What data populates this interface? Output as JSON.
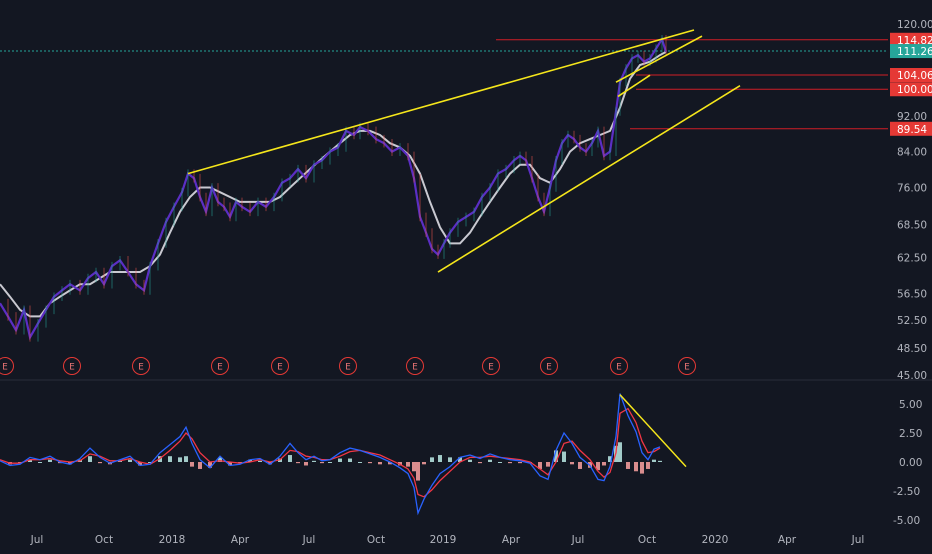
{
  "colors": {
    "background": "#131722",
    "trendline": "#f5e61b",
    "hline": "#d01f26",
    "price_tag_red": "#e53935",
    "price_tag_teal": "#26a69a",
    "ma": "#c9c9d1",
    "price": "#5b2ec4",
    "macd": "#2962ff",
    "signal": "#f23645",
    "hist_pos": "#b2dfdb",
    "hist_neg": "#ef9a9a",
    "text": "#b2b5be"
  },
  "chart_data": [
    {
      "type": "line",
      "name": "price-panel",
      "xlabel": "",
      "ylabel": "",
      "x_ticks": [
        "Jul",
        "Oct",
        "2018",
        "Apr",
        "Jul",
        "Oct",
        "2019",
        "Apr",
        "Jul",
        "Oct",
        "2020",
        "Apr",
        "Jul"
      ],
      "y_ticks": [
        "120.00",
        "104.06",
        "100.00",
        "92.00",
        "84.00",
        "76.00",
        "68.50",
        "62.50",
        "56.50",
        "52.50",
        "48.50",
        "45.00"
      ],
      "ylim": [
        45,
        120
      ],
      "scale": "log",
      "grid": false,
      "price_tags": [
        {
          "label": "114.82",
          "value": 114.82,
          "color": "red"
        },
        {
          "label": "111.26",
          "value": 111.26,
          "color": "teal"
        },
        {
          "label": "104.06",
          "value": 104.06,
          "color": "red"
        },
        {
          "label": "100.00",
          "value": 100.0,
          "color": "red"
        },
        {
          "label": "89.54",
          "value": 89.54,
          "color": "red"
        }
      ],
      "horizontal_lines": [
        114.82,
        104.06,
        100.0,
        89.54
      ],
      "earnings_markers": [
        "E",
        "E",
        "E",
        "E",
        "E",
        "E",
        "E",
        "E",
        "E",
        "E",
        "E"
      ],
      "price_series": [
        [
          0,
          55
        ],
        [
          8,
          53
        ],
        [
          16,
          51
        ],
        [
          24,
          54
        ],
        [
          30,
          50
        ],
        [
          38,
          52
        ],
        [
          46,
          54
        ],
        [
          54,
          56
        ],
        [
          62,
          57
        ],
        [
          70,
          58
        ],
        [
          80,
          57
        ],
        [
          88,
          59
        ],
        [
          96,
          60
        ],
        [
          104,
          58
        ],
        [
          112,
          61
        ],
        [
          120,
          62
        ],
        [
          128,
          60
        ],
        [
          136,
          58
        ],
        [
          144,
          57
        ],
        [
          150,
          61
        ],
        [
          158,
          65
        ],
        [
          166,
          69
        ],
        [
          174,
          72
        ],
        [
          182,
          75
        ],
        [
          188,
          79
        ],
        [
          194,
          78
        ],
        [
          200,
          74
        ],
        [
          206,
          71
        ],
        [
          212,
          76
        ],
        [
          218,
          73
        ],
        [
          224,
          72
        ],
        [
          230,
          70
        ],
        [
          236,
          73
        ],
        [
          242,
          72
        ],
        [
          250,
          71
        ],
        [
          258,
          73
        ],
        [
          266,
          72
        ],
        [
          274,
          74
        ],
        [
          282,
          77
        ],
        [
          290,
          78
        ],
        [
          298,
          80
        ],
        [
          306,
          78
        ],
        [
          314,
          81
        ],
        [
          322,
          82
        ],
        [
          330,
          84
        ],
        [
          338,
          85
        ],
        [
          346,
          89
        ],
        [
          354,
          88
        ],
        [
          360,
          90
        ],
        [
          368,
          89
        ],
        [
          376,
          87
        ],
        [
          384,
          86
        ],
        [
          392,
          84
        ],
        [
          400,
          85
        ],
        [
          408,
          83
        ],
        [
          414,
          78
        ],
        [
          420,
          70
        ],
        [
          426,
          67
        ],
        [
          432,
          64
        ],
        [
          438,
          63
        ],
        [
          444,
          65
        ],
        [
          450,
          67
        ],
        [
          458,
          69
        ],
        [
          466,
          70
        ],
        [
          474,
          71
        ],
        [
          482,
          74
        ],
        [
          490,
          76
        ],
        [
          498,
          79
        ],
        [
          506,
          80
        ],
        [
          514,
          82
        ],
        [
          520,
          83
        ],
        [
          526,
          82
        ],
        [
          532,
          78
        ],
        [
          538,
          74
        ],
        [
          544,
          71
        ],
        [
          550,
          76
        ],
        [
          556,
          82
        ],
        [
          562,
          86
        ],
        [
          568,
          88
        ],
        [
          574,
          87
        ],
        [
          580,
          85
        ],
        [
          586,
          84
        ],
        [
          592,
          86
        ],
        [
          598,
          89
        ],
        [
          604,
          83
        ],
        [
          610,
          84
        ],
        [
          616,
          94
        ],
        [
          620,
          102
        ],
        [
          626,
          106
        ],
        [
          632,
          109
        ],
        [
          638,
          110
        ],
        [
          644,
          108
        ],
        [
          650,
          109
        ],
        [
          656,
          112
        ],
        [
          662,
          115
        ],
        [
          666,
          111
        ]
      ],
      "ma_series": [
        [
          0,
          58
        ],
        [
          10,
          56
        ],
        [
          20,
          54
        ],
        [
          30,
          53
        ],
        [
          40,
          53
        ],
        [
          50,
          55
        ],
        [
          60,
          56
        ],
        [
          70,
          57
        ],
        [
          80,
          58
        ],
        [
          90,
          58
        ],
        [
          100,
          59
        ],
        [
          110,
          60
        ],
        [
          120,
          60
        ],
        [
          130,
          60
        ],
        [
          140,
          60
        ],
        [
          150,
          61
        ],
        [
          160,
          63
        ],
        [
          170,
          67
        ],
        [
          180,
          71
        ],
        [
          190,
          74
        ],
        [
          200,
          76
        ],
        [
          210,
          76
        ],
        [
          220,
          75
        ],
        [
          230,
          74
        ],
        [
          240,
          73
        ],
        [
          250,
          73
        ],
        [
          260,
          73
        ],
        [
          270,
          73
        ],
        [
          280,
          74
        ],
        [
          290,
          76
        ],
        [
          300,
          78
        ],
        [
          310,
          80
        ],
        [
          320,
          82
        ],
        [
          330,
          84
        ],
        [
          340,
          86
        ],
        [
          350,
          88
        ],
        [
          360,
          89
        ],
        [
          370,
          89
        ],
        [
          380,
          88
        ],
        [
          390,
          86
        ],
        [
          400,
          85
        ],
        [
          410,
          83
        ],
        [
          420,
          79
        ],
        [
          430,
          73
        ],
        [
          440,
          68
        ],
        [
          450,
          65
        ],
        [
          460,
          65
        ],
        [
          470,
          67
        ],
        [
          480,
          70
        ],
        [
          490,
          73
        ],
        [
          500,
          76
        ],
        [
          510,
          79
        ],
        [
          520,
          81
        ],
        [
          530,
          81
        ],
        [
          540,
          78
        ],
        [
          550,
          77
        ],
        [
          560,
          80
        ],
        [
          570,
          84
        ],
        [
          580,
          86
        ],
        [
          590,
          87
        ],
        [
          600,
          88
        ],
        [
          610,
          89
        ],
        [
          620,
          95
        ],
        [
          630,
          103
        ],
        [
          640,
          107
        ],
        [
          650,
          108
        ],
        [
          660,
          110
        ],
        [
          666,
          111
        ]
      ],
      "trendlines": [
        {
          "from": [
            188,
            79
          ],
          "to": [
            694,
            118
          ]
        },
        {
          "from": [
            438,
            60
          ],
          "to": [
            740,
            101
          ]
        },
        {
          "from": [
            616,
            102
          ],
          "to": [
            702,
            116
          ]
        },
        {
          "from": [
            618,
            98
          ],
          "to": [
            650,
            104
          ]
        }
      ]
    },
    {
      "type": "line",
      "name": "macd-panel",
      "xlabel": "",
      "ylabel": "",
      "y_ticks": [
        "5.00",
        "2.50",
        "0.00",
        "-2.50",
        "-5.00"
      ],
      "ylim": [
        -5.5,
        6
      ],
      "grid": false,
      "macd_series": [
        [
          0,
          0.1
        ],
        [
          10,
          -0.3
        ],
        [
          20,
          -0.2
        ],
        [
          30,
          0.4
        ],
        [
          40,
          0.2
        ],
        [
          50,
          0.5
        ],
        [
          60,
          0.0
        ],
        [
          70,
          -0.2
        ],
        [
          80,
          0.3
        ],
        [
          90,
          1.2
        ],
        [
          100,
          0.4
        ],
        [
          110,
          -0.1
        ],
        [
          120,
          0.2
        ],
        [
          130,
          0.5
        ],
        [
          140,
          -0.3
        ],
        [
          150,
          -0.2
        ],
        [
          160,
          0.8
        ],
        [
          170,
          1.5
        ],
        [
          180,
          2.2
        ],
        [
          186,
          3.0
        ],
        [
          192,
          1.6
        ],
        [
          200,
          0.2
        ],
        [
          210,
          -0.5
        ],
        [
          220,
          0.5
        ],
        [
          230,
          -0.3
        ],
        [
          240,
          -0.2
        ],
        [
          250,
          0.2
        ],
        [
          260,
          0.3
        ],
        [
          270,
          -0.2
        ],
        [
          280,
          0.5
        ],
        [
          290,
          1.6
        ],
        [
          298,
          0.8
        ],
        [
          306,
          0.2
        ],
        [
          314,
          0.5
        ],
        [
          322,
          0.1
        ],
        [
          330,
          0.2
        ],
        [
          340,
          0.8
        ],
        [
          350,
          1.2
        ],
        [
          360,
          1.0
        ],
        [
          370,
          0.7
        ],
        [
          380,
          0.4
        ],
        [
          390,
          0.0
        ],
        [
          400,
          -0.5
        ],
        [
          408,
          -1.0
        ],
        [
          414,
          -2.2
        ],
        [
          418,
          -4.4
        ],
        [
          424,
          -3.2
        ],
        [
          432,
          -2.0
        ],
        [
          440,
          -1.0
        ],
        [
          450,
          -0.4
        ],
        [
          460,
          0.4
        ],
        [
          470,
          0.6
        ],
        [
          480,
          0.3
        ],
        [
          490,
          0.7
        ],
        [
          500,
          0.4
        ],
        [
          510,
          0.2
        ],
        [
          520,
          0.1
        ],
        [
          530,
          -0.1
        ],
        [
          540,
          -1.2
        ],
        [
          548,
          -1.5
        ],
        [
          556,
          1.0
        ],
        [
          564,
          2.5
        ],
        [
          572,
          1.6
        ],
        [
          580,
          0.4
        ],
        [
          590,
          -0.3
        ],
        [
          598,
          -1.5
        ],
        [
          604,
          -1.6
        ],
        [
          610,
          -0.4
        ],
        [
          616,
          2.2
        ],
        [
          620,
          5.9
        ],
        [
          628,
          4.0
        ],
        [
          636,
          2.6
        ],
        [
          642,
          0.8
        ],
        [
          648,
          0.2
        ],
        [
          654,
          1.1
        ],
        [
          660,
          1.3
        ]
      ],
      "signal_series": [
        [
          0,
          0.2
        ],
        [
          10,
          -0.1
        ],
        [
          20,
          -0.1
        ],
        [
          30,
          0.2
        ],
        [
          40,
          0.2
        ],
        [
          50,
          0.3
        ],
        [
          60,
          0.1
        ],
        [
          70,
          0.0
        ],
        [
          80,
          0.1
        ],
        [
          90,
          0.7
        ],
        [
          100,
          0.5
        ],
        [
          110,
          0.1
        ],
        [
          120,
          0.1
        ],
        [
          130,
          0.3
        ],
        [
          140,
          0.0
        ],
        [
          150,
          -0.2
        ],
        [
          160,
          0.3
        ],
        [
          170,
          1.0
        ],
        [
          180,
          1.8
        ],
        [
          186,
          2.5
        ],
        [
          192,
          2.0
        ],
        [
          200,
          0.8
        ],
        [
          210,
          0.0
        ],
        [
          220,
          0.1
        ],
        [
          230,
          0.0
        ],
        [
          240,
          -0.1
        ],
        [
          250,
          0.0
        ],
        [
          260,
          0.2
        ],
        [
          270,
          0.0
        ],
        [
          280,
          0.2
        ],
        [
          290,
          1.0
        ],
        [
          298,
          0.9
        ],
        [
          306,
          0.5
        ],
        [
          314,
          0.4
        ],
        [
          322,
          0.2
        ],
        [
          330,
          0.2
        ],
        [
          340,
          0.5
        ],
        [
          350,
          0.9
        ],
        [
          360,
          1.0
        ],
        [
          370,
          0.8
        ],
        [
          380,
          0.6
        ],
        [
          390,
          0.2
        ],
        [
          400,
          -0.2
        ],
        [
          408,
          -0.6
        ],
        [
          414,
          -1.4
        ],
        [
          418,
          -2.8
        ],
        [
          424,
          -3.0
        ],
        [
          432,
          -2.4
        ],
        [
          440,
          -1.6
        ],
        [
          450,
          -0.8
        ],
        [
          460,
          0.0
        ],
        [
          470,
          0.4
        ],
        [
          480,
          0.4
        ],
        [
          490,
          0.5
        ],
        [
          500,
          0.4
        ],
        [
          510,
          0.3
        ],
        [
          520,
          0.2
        ],
        [
          530,
          0.0
        ],
        [
          540,
          -0.6
        ],
        [
          548,
          -1.1
        ],
        [
          556,
          0.0
        ],
        [
          564,
          1.6
        ],
        [
          572,
          1.8
        ],
        [
          580,
          1.0
        ],
        [
          590,
          0.2
        ],
        [
          598,
          -0.8
        ],
        [
          604,
          -1.3
        ],
        [
          610,
          -0.9
        ],
        [
          616,
          0.8
        ],
        [
          620,
          4.2
        ],
        [
          628,
          4.6
        ],
        [
          636,
          3.4
        ],
        [
          642,
          1.8
        ],
        [
          648,
          0.8
        ],
        [
          654,
          0.9
        ],
        [
          660,
          1.2
        ]
      ],
      "trendline": {
        "from": [
          620,
          5.8
        ],
        "to": [
          686,
          -0.4
        ]
      }
    }
  ]
}
